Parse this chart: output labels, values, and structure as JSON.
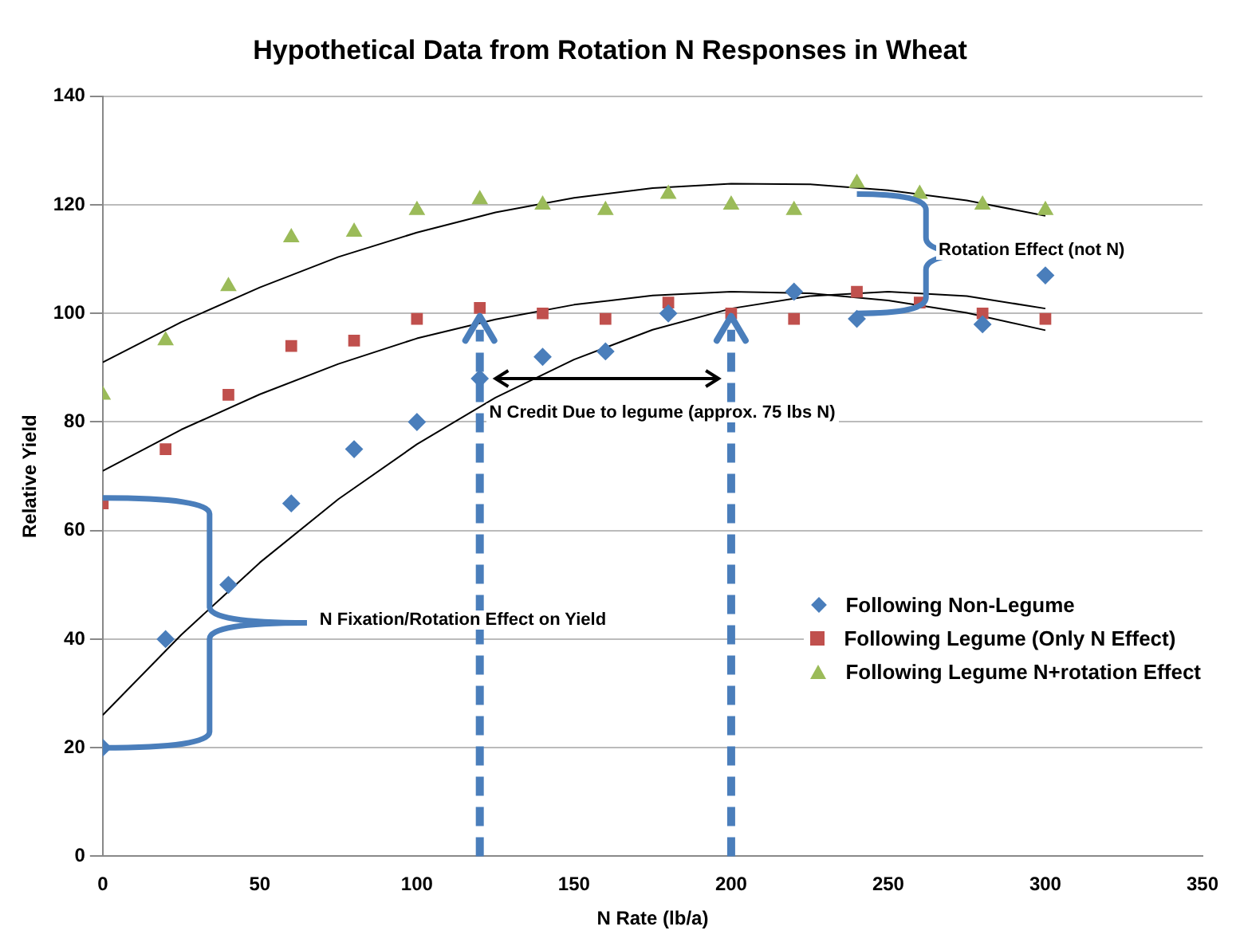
{
  "chart_data": {
    "type": "scatter",
    "title": "Hypothetical Data from Rotation N Responses in Wheat",
    "xlabel": "N Rate (lb/a)",
    "ylabel": "Relative Yield",
    "x": [
      0,
      20,
      40,
      60,
      80,
      100,
      120,
      140,
      160,
      180,
      200,
      220,
      240,
      260,
      280,
      300
    ],
    "series": [
      {
        "name": "Following Non-Legume",
        "color": "#4a7ebb",
        "marker": "diamond",
        "values": [
          20,
          40,
          50,
          65,
          75,
          80,
          88,
          92,
          93,
          100,
          null,
          104,
          99,
          null,
          98,
          107
        ]
      },
      {
        "name": "Following Legume (Only N Effect)",
        "color": "#c0504d",
        "marker": "square",
        "values": [
          65,
          75,
          85,
          94,
          95,
          99,
          101,
          100,
          99,
          102,
          100,
          99,
          104,
          102,
          100,
          99
        ]
      },
      {
        "name": "Following Legume N+rotation Effect",
        "color": "#9bbb59",
        "marker": "triangle",
        "values": [
          85,
          95,
          105,
          114,
          115,
          119,
          121,
          120,
          119,
          122,
          120,
          119,
          124,
          122,
          120,
          119
        ]
      },
      {
        "type": "line",
        "color": "#000000",
        "marker": "none",
        "x": [
          0,
          25,
          50,
          75,
          100,
          125,
          150,
          175,
          200,
          225,
          250,
          275,
          300
        ],
        "values": [
          91,
          98.4,
          104.8,
          110.4,
          114.9,
          118.6,
          121.3,
          123.1,
          123.9,
          123.8,
          122.7,
          120.8,
          118
        ]
      },
      {
        "type": "line",
        "color": "#000000",
        "marker": "none",
        "x": [
          0,
          25,
          50,
          75,
          100,
          125,
          150,
          175,
          200,
          225,
          250,
          275,
          300
        ],
        "values": [
          71,
          78.6,
          85.1,
          90.7,
          95.4,
          98.9,
          101.6,
          103.3,
          104,
          103.7,
          102.4,
          100.1,
          96.9
        ]
      },
      {
        "type": "line",
        "color": "#000000",
        "marker": "none",
        "x": [
          0,
          25,
          50,
          75,
          100,
          125,
          150,
          175,
          200,
          225,
          250,
          275,
          300
        ],
        "values": [
          26,
          40.8,
          54.1,
          65.8,
          75.9,
          84.5,
          91.5,
          97,
          100.9,
          103.2,
          104,
          103.2,
          100.9
        ]
      }
    ],
    "xlim": [
      0,
      350
    ],
    "xticks": [
      0,
      50,
      100,
      150,
      200,
      250,
      300,
      350
    ],
    "ylim": [
      0,
      140
    ],
    "yticks": [
      0,
      20,
      40,
      60,
      80,
      100,
      120,
      140
    ],
    "grid": "y",
    "legend": "right",
    "ref_lines": [
      {
        "axis": "x",
        "value": 120,
        "color": "#4a7ebb",
        "line_style": "dashed"
      },
      {
        "axis": "x",
        "value": 200,
        "color": "#4a7ebb",
        "line_style": "dashed"
      }
    ],
    "annotations": [
      "Rotation Effect (not N)",
      "N Credit Due to legume (approx. 75 lbs N)",
      "N Fixation/Rotation Effect on Yield"
    ]
  }
}
